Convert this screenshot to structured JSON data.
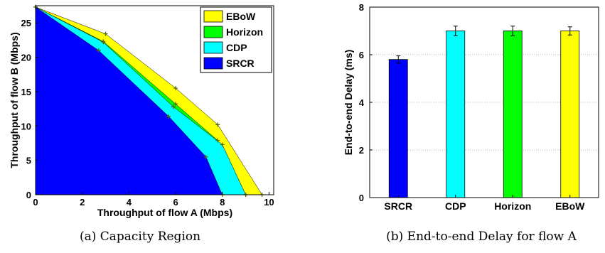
{
  "chart_data": [
    {
      "type": "area",
      "caption": "(a) Capacity Region",
      "xlabel": "Throughput of flow A (Mbps)",
      "ylabel": "Throughput of flow B (Mbps)",
      "xlim": [
        0,
        10.2
      ],
      "ylim": [
        0,
        27.5
      ],
      "xticks": [
        "0",
        "2",
        "4",
        "6",
        "8",
        "10"
      ],
      "yticks": [
        "0",
        "5",
        "10",
        "15",
        "20",
        "25"
      ],
      "grid": false,
      "legend_position": "top-right",
      "series": [
        {
          "name": "EBoW",
          "color": "#ffff00",
          "points": [
            [
              0,
              27.3
            ],
            [
              3.0,
              23.4
            ],
            [
              6.0,
              15.5
            ],
            [
              7.8,
              10.2
            ],
            [
              9.7,
              0
            ]
          ]
        },
        {
          "name": "Horizon",
          "color": "#00ff00",
          "points": [
            [
              0,
              27.3
            ],
            [
              2.9,
              22.3
            ],
            [
              6.0,
              13.2
            ],
            [
              7.8,
              7.9
            ],
            [
              9.0,
              0
            ]
          ]
        },
        {
          "name": "CDP",
          "color": "#00ffff",
          "points": [
            [
              0,
              27.3
            ],
            [
              2.9,
              22.2
            ],
            [
              5.9,
              12.8
            ],
            [
              8.0,
              7.3
            ],
            [
              9.0,
              0
            ]
          ]
        },
        {
          "name": "SRCR",
          "color": "#0000ff",
          "points": [
            [
              0,
              27.3
            ],
            [
              2.7,
              21.0
            ],
            [
              5.7,
              11.4
            ],
            [
              7.3,
              5.5
            ],
            [
              8.0,
              0
            ]
          ]
        }
      ]
    },
    {
      "type": "bar",
      "caption": "(b) End-to-end Delay for flow A",
      "xlabel": "",
      "ylabel": "End-to-end Delay (ms)",
      "ylim": [
        0,
        8
      ],
      "yticks": [
        "0",
        "2",
        "4",
        "6",
        "8"
      ],
      "grid": true,
      "categories": [
        "SRCR",
        "CDP",
        "Horizon",
        "EBoW"
      ],
      "values": [
        5.8,
        7.0,
        7.0,
        7.0
      ],
      "errors": [
        0.15,
        0.2,
        0.2,
        0.17
      ],
      "colors": [
        "#0000ff",
        "#00ffff",
        "#00ff00",
        "#ffff00"
      ]
    }
  ]
}
